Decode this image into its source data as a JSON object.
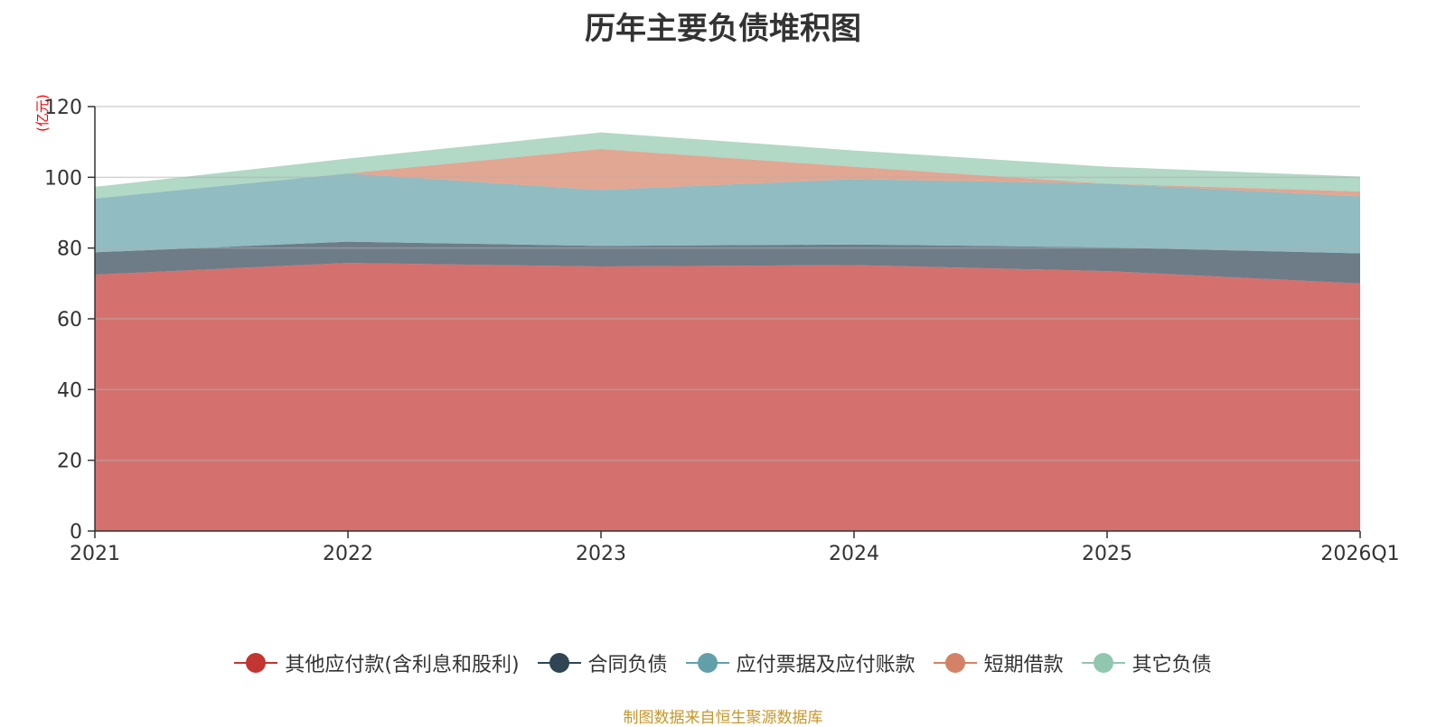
{
  "chart_data": {
    "type": "area",
    "stacked": true,
    "title": "历年主要负债堆积图",
    "ylabel": "(亿元)",
    "xlabel": "",
    "categories": [
      "2021",
      "2022",
      "2023",
      "2024",
      "2025",
      "2026Q1"
    ],
    "ylim": [
      0,
      120
    ],
    "yticks": [
      0,
      20,
      40,
      60,
      80,
      100,
      120
    ],
    "grid": true,
    "legend_position": "bottom",
    "series": [
      {
        "name": "其他应付款(含利息和股利)",
        "color": "#c23531",
        "values": [
          72.5,
          75.8,
          74.8,
          75.2,
          73.5,
          70.0
        ]
      },
      {
        "name": "合同负债",
        "color": "#2f4554",
        "values": [
          6.3,
          6.0,
          5.8,
          5.8,
          6.7,
          8.5
        ]
      },
      {
        "name": "应付票据及应付账款",
        "color": "#61a0a8",
        "values": [
          15.2,
          19.3,
          15.8,
          18.5,
          18.0,
          16.1
        ]
      },
      {
        "name": "短期借款",
        "color": "#d48265",
        "values": [
          0.0,
          0.0,
          11.6,
          3.5,
          0.0,
          1.4
        ]
      },
      {
        "name": "其它负债",
        "color": "#91c7ae",
        "values": [
          3.3,
          4.2,
          4.7,
          4.6,
          4.8,
          4.2
        ]
      }
    ],
    "source_note": "制图数据来自恒生聚源数据库"
  }
}
